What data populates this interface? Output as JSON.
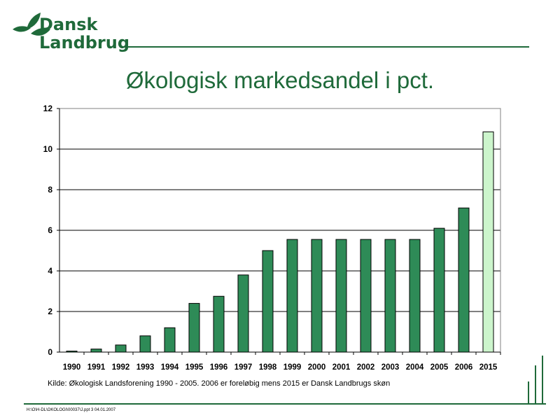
{
  "brand": {
    "line1": "Dansk",
    "line2": "Landbrug",
    "colors": {
      "green": "#1f6a3a",
      "bar": "#2e8b57",
      "bar_highlight": "#ccf5cc"
    }
  },
  "title": "Økologisk markedsandel i pct.",
  "chart_data": {
    "type": "bar",
    "categories": [
      "1990",
      "1991",
      "1992",
      "1993",
      "1994",
      "1995",
      "1996",
      "1997",
      "1998",
      "1999",
      "2000",
      "2001",
      "2002",
      "2003",
      "2004",
      "2005",
      "2006",
      "2015"
    ],
    "values": [
      0.05,
      0.15,
      0.35,
      0.8,
      1.2,
      2.4,
      2.75,
      3.8,
      5.0,
      5.55,
      5.55,
      5.55,
      5.55,
      5.55,
      5.55,
      6.1,
      7.1,
      10.85
    ],
    "highlight": [
      "2015"
    ],
    "ylim": [
      0,
      12
    ],
    "yticks": [
      0,
      2,
      4,
      6,
      8,
      10,
      12
    ],
    "xlabel": "",
    "ylabel": "",
    "grid": true,
    "legend": "none"
  },
  "source": "Kilde: Økologisk Landsforening 1990 - 2005. 2006 er foreløbig mens 2015 er Dansk Landbrugs skøn",
  "footer": "H:\\O\\H-DL\\OKOLOGI\\00037\\J.ppt  3  04.01.2007"
}
